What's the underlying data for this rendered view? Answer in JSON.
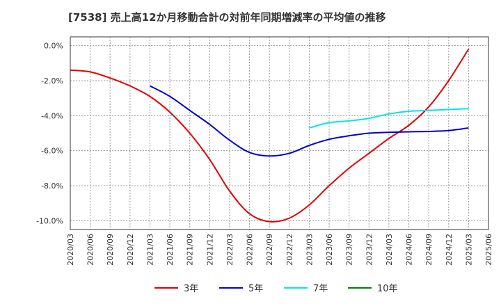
{
  "chart_data": {
    "type": "line",
    "title": "[7538]  売上高12か月移動合計の対前年同期増減率の平均値の推移",
    "xlabel": "",
    "ylabel": "",
    "y_tick_labels": [
      "0.0%",
      "-2.0%",
      "-4.0%",
      "-6.0%",
      "-8.0%",
      "-10.0%"
    ],
    "y_ticks": [
      0,
      -2,
      -4,
      -6,
      -8,
      -10
    ],
    "ylim": [
      -10.5,
      0.5
    ],
    "x_tick_labels": [
      "2020/03",
      "2020/06",
      "2020/09",
      "2020/12",
      "2021/03",
      "2021/06",
      "2021/09",
      "2021/12",
      "2022/03",
      "2022/06",
      "2022/09",
      "2022/12",
      "2023/03",
      "2023/06",
      "2023/09",
      "2023/12",
      "2024/03",
      "2024/06",
      "2024/09",
      "2024/12",
      "2025/03",
      "2025/06"
    ],
    "grid": true,
    "legend_position": "bottom",
    "series": [
      {
        "name": "3年",
        "color": "#e00000",
        "x": [
          "2020/03",
          "2020/06",
          "2020/09",
          "2020/12",
          "2021/03",
          "2021/06",
          "2021/09",
          "2021/12",
          "2022/03",
          "2022/06",
          "2022/09",
          "2022/12",
          "2023/03",
          "2023/06",
          "2023/09",
          "2023/12",
          "2024/03",
          "2024/06",
          "2024/09",
          "2024/12",
          "2025/03"
        ],
        "values": [
          -1.4,
          -1.5,
          -1.85,
          -2.3,
          -2.9,
          -3.8,
          -5.0,
          -6.5,
          -8.3,
          -9.6,
          -10.05,
          -9.85,
          -9.1,
          -8.0,
          -7.0,
          -6.15,
          -5.3,
          -4.55,
          -3.5,
          -2.0,
          -0.2
        ]
      },
      {
        "name": "5年",
        "color": "#0000cc",
        "x": [
          "2021/03",
          "2021/06",
          "2021/09",
          "2021/12",
          "2022/03",
          "2022/06",
          "2022/09",
          "2022/12",
          "2023/03",
          "2023/06",
          "2023/09",
          "2023/12",
          "2024/03",
          "2024/06",
          "2024/09",
          "2024/12",
          "2025/03"
        ],
        "values": [
          -2.3,
          -2.9,
          -3.7,
          -4.5,
          -5.4,
          -6.1,
          -6.3,
          -6.15,
          -5.7,
          -5.35,
          -5.15,
          -5.0,
          -4.95,
          -4.92,
          -4.9,
          -4.85,
          -4.7
        ]
      },
      {
        "name": "7年",
        "color": "#00e5e5",
        "x": [
          "2023/03",
          "2023/06",
          "2023/09",
          "2023/12",
          "2024/03",
          "2024/06",
          "2024/09",
          "2024/12",
          "2025/03"
        ],
        "values": [
          -4.7,
          -4.4,
          -4.3,
          -4.15,
          -3.9,
          -3.75,
          -3.7,
          -3.65,
          -3.6
        ]
      },
      {
        "name": "10年",
        "color": "#008000",
        "x": [],
        "values": []
      }
    ]
  }
}
